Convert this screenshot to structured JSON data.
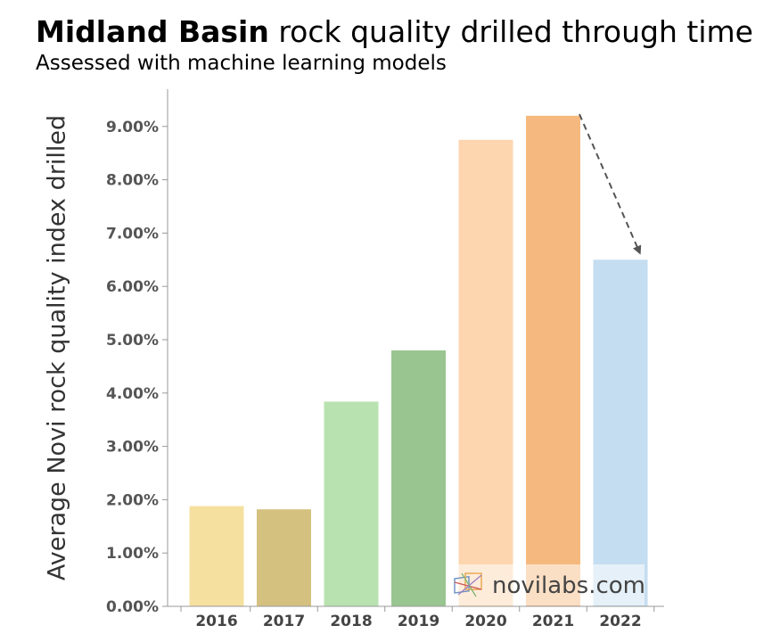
{
  "chart_data": {
    "type": "bar",
    "title_bold": "Midland Basin",
    "title_rest": " rock quality drilled through time",
    "subtitle": "Assessed with machine learning models",
    "ylabel": "Average Novi  rock quality index drilled",
    "xlabel": "",
    "categories": [
      "2016",
      "2017",
      "2018",
      "2019",
      "2020",
      "2021",
      "2022"
    ],
    "values": [
      0.0188,
      0.0182,
      0.0384,
      0.048,
      0.0875,
      0.092,
      0.065
    ],
    "colors": [
      "#f5e0a0",
      "#d4c17f",
      "#b8e3b0",
      "#99c591",
      "#fdd6b0",
      "#f5b97f",
      "#c5ddf0"
    ],
    "yticks": [
      "0.00%",
      "1.00%",
      "2.00%",
      "3.00%",
      "4.00%",
      "5.00%",
      "6.00%",
      "7.00%",
      "8.00%",
      "9.00%"
    ],
    "ylim": [
      0,
      0.098
    ],
    "annotation": "dashed arrow from 2021 bar down to 2022 bar",
    "grid": false
  },
  "watermark": {
    "text": "novilabs.com",
    "icon": "novilabs-logo-icon"
  }
}
